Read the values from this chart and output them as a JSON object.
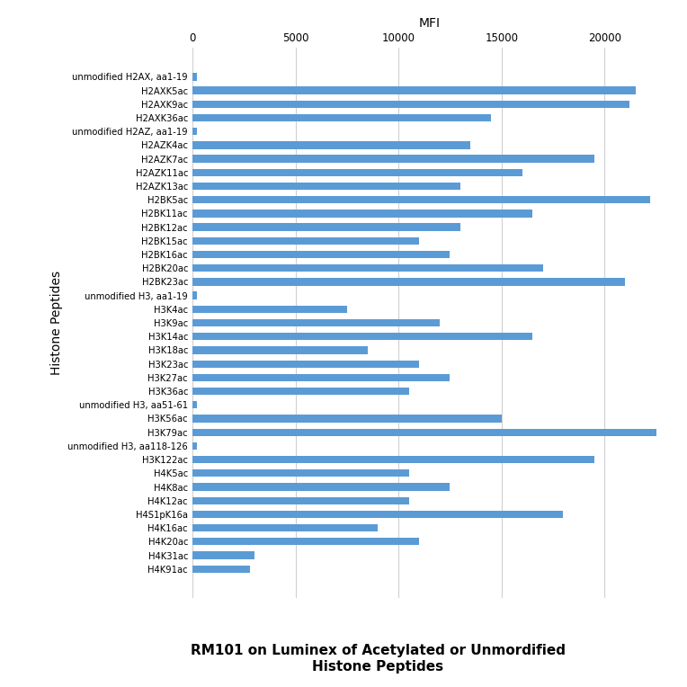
{
  "labels": [
    "unmodified H2AX, aa1-19",
    "H2AXK5ac",
    "H2AXK9ac",
    "H2AXK36ac",
    "unmodified H2AZ, aa1-19",
    "H2AZK4ac",
    "H2AZK7ac",
    "H2AZK11ac",
    "H2AZK13ac",
    "H2BK5ac",
    "H2BK11ac",
    "H2BK12ac",
    "H2BK15ac",
    "H2BK16ac",
    "H2BK20ac",
    "H2BK23ac",
    "unmodified H3, aa1-19",
    "H3K4ac",
    "H3K9ac",
    "H3K14ac",
    "H3K18ac",
    "H3K23ac",
    "H3K27ac",
    "H3K36ac",
    "unmodified H3, aa51-61",
    "H3K56ac",
    "H3K79ac",
    "unmodified H3, aa118-126",
    "H3K122ac",
    "H4K5ac",
    "H4K8ac",
    "H4K12ac",
    "H4S1pK16a",
    "H4K16ac",
    "H4K20ac",
    "H4K31ac",
    "H4K91ac"
  ],
  "values": [
    200,
    21500,
    21200,
    14500,
    200,
    13500,
    19500,
    16000,
    13000,
    22200,
    16500,
    13000,
    11000,
    12500,
    17000,
    21000,
    200,
    7500,
    12000,
    16500,
    8500,
    11000,
    12500,
    10500,
    200,
    15000,
    22500,
    200,
    19500,
    10500,
    12500,
    10500,
    18000,
    9000,
    11000,
    3000,
    2800
  ],
  "bar_color": "#5B9BD5",
  "xlabel": "MFI",
  "ylabel": "Histone Peptides",
  "title": "RM101 on Luminex of Acetylated or Unmordified\nHistone Peptides",
  "xlim": [
    0,
    23000
  ],
  "xticks": [
    0,
    5000,
    10000,
    15000,
    20000
  ],
  "background_color": "#ffffff",
  "grid_color": "#d0d0d0",
  "bar_height": 0.55,
  "title_fontsize": 11,
  "label_fontsize": 7.2,
  "tick_fontsize": 8.5
}
